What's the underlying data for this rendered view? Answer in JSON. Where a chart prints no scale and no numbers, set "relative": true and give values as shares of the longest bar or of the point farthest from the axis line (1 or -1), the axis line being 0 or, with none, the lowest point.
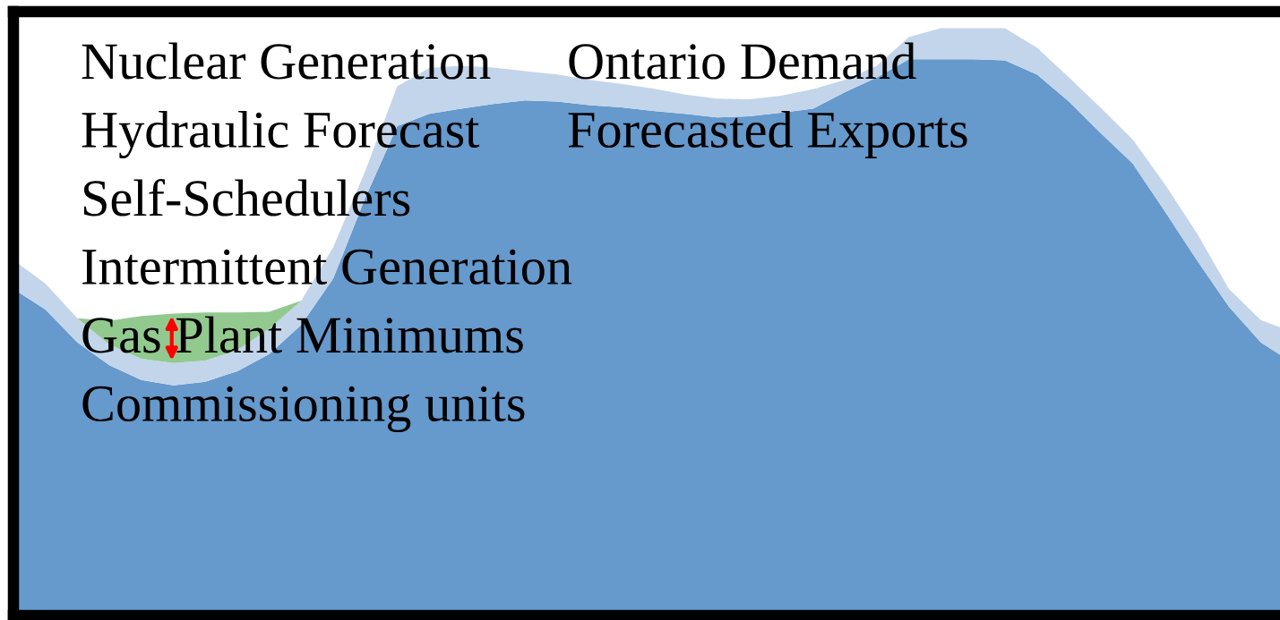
{
  "chart_data": {
    "type": "area",
    "relative": true,
    "stacked": true,
    "legend": false,
    "categories": [
      null,
      null,
      null,
      null,
      null,
      null,
      null,
      null,
      null,
      null,
      null,
      null,
      null,
      null,
      null,
      null,
      null,
      null,
      null,
      null,
      null,
      null,
      null,
      null,
      null,
      null,
      null,
      null,
      null,
      null,
      null,
      null,
      null,
      null,
      null,
      null,
      null,
      null,
      null,
      null,
      null
    ],
    "series": [
      {
        "color": "#6699cc",
        "values": [
          0.556,
          0.521,
          0.465,
          0.426,
          0.401,
          0.392,
          0.398,
          0.416,
          0.445,
          0.495,
          0.574,
          0.711,
          0.833,
          0.854,
          0.863,
          0.871,
          0.877,
          0.875,
          0.869,
          0.865,
          0.859,
          0.854,
          0.848,
          0.85,
          0.856,
          0.863,
          0.891,
          0.916,
          0.947,
          0.947,
          0.947,
          0.945,
          0.921,
          0.875,
          0.821,
          0.769,
          0.688,
          0.605,
          0.526,
          0.465,
          0.43
        ]
      },
      {
        "color": "#c3d5ea",
        "values": [
          0.049,
          0.044,
          0.041,
          0.035,
          0.036,
          0.038,
          0.036,
          0.036,
          0.043,
          0.041,
          0.053,
          0.046,
          0.068,
          0.078,
          0.073,
          0.062,
          0.05,
          0.046,
          0.043,
          0.04,
          0.038,
          0.033,
          0.032,
          0.029,
          0.029,
          0.033,
          0.021,
          0.02,
          0.038,
          0.053,
          0.053,
          0.055,
          0.046,
          0.041,
          0.043,
          0.041,
          0.046,
          0.046,
          0.03,
          0.038,
          0.053
        ]
      },
      {
        "color": "#92c98f",
        "values": [
          0,
          0,
          0,
          0.041,
          0.073,
          0.084,
          0.082,
          0.064,
          0.029,
          0,
          0,
          0,
          0,
          0,
          0,
          0,
          0,
          0,
          0,
          0,
          0,
          0,
          0,
          0,
          0,
          0,
          0,
          0,
          0,
          0,
          0,
          0,
          0,
          0,
          0,
          0,
          0,
          0,
          0,
          0,
          0
        ]
      }
    ],
    "annotations": [
      "Nuclear Generation",
      "Hydraulic Forecast",
      "Self-Schedulers",
      "Intermittent Generation",
      "Gas Plant Minimums",
      "Commissioning units",
      "Ontario Demand",
      "Forecasted Exports"
    ]
  }
}
